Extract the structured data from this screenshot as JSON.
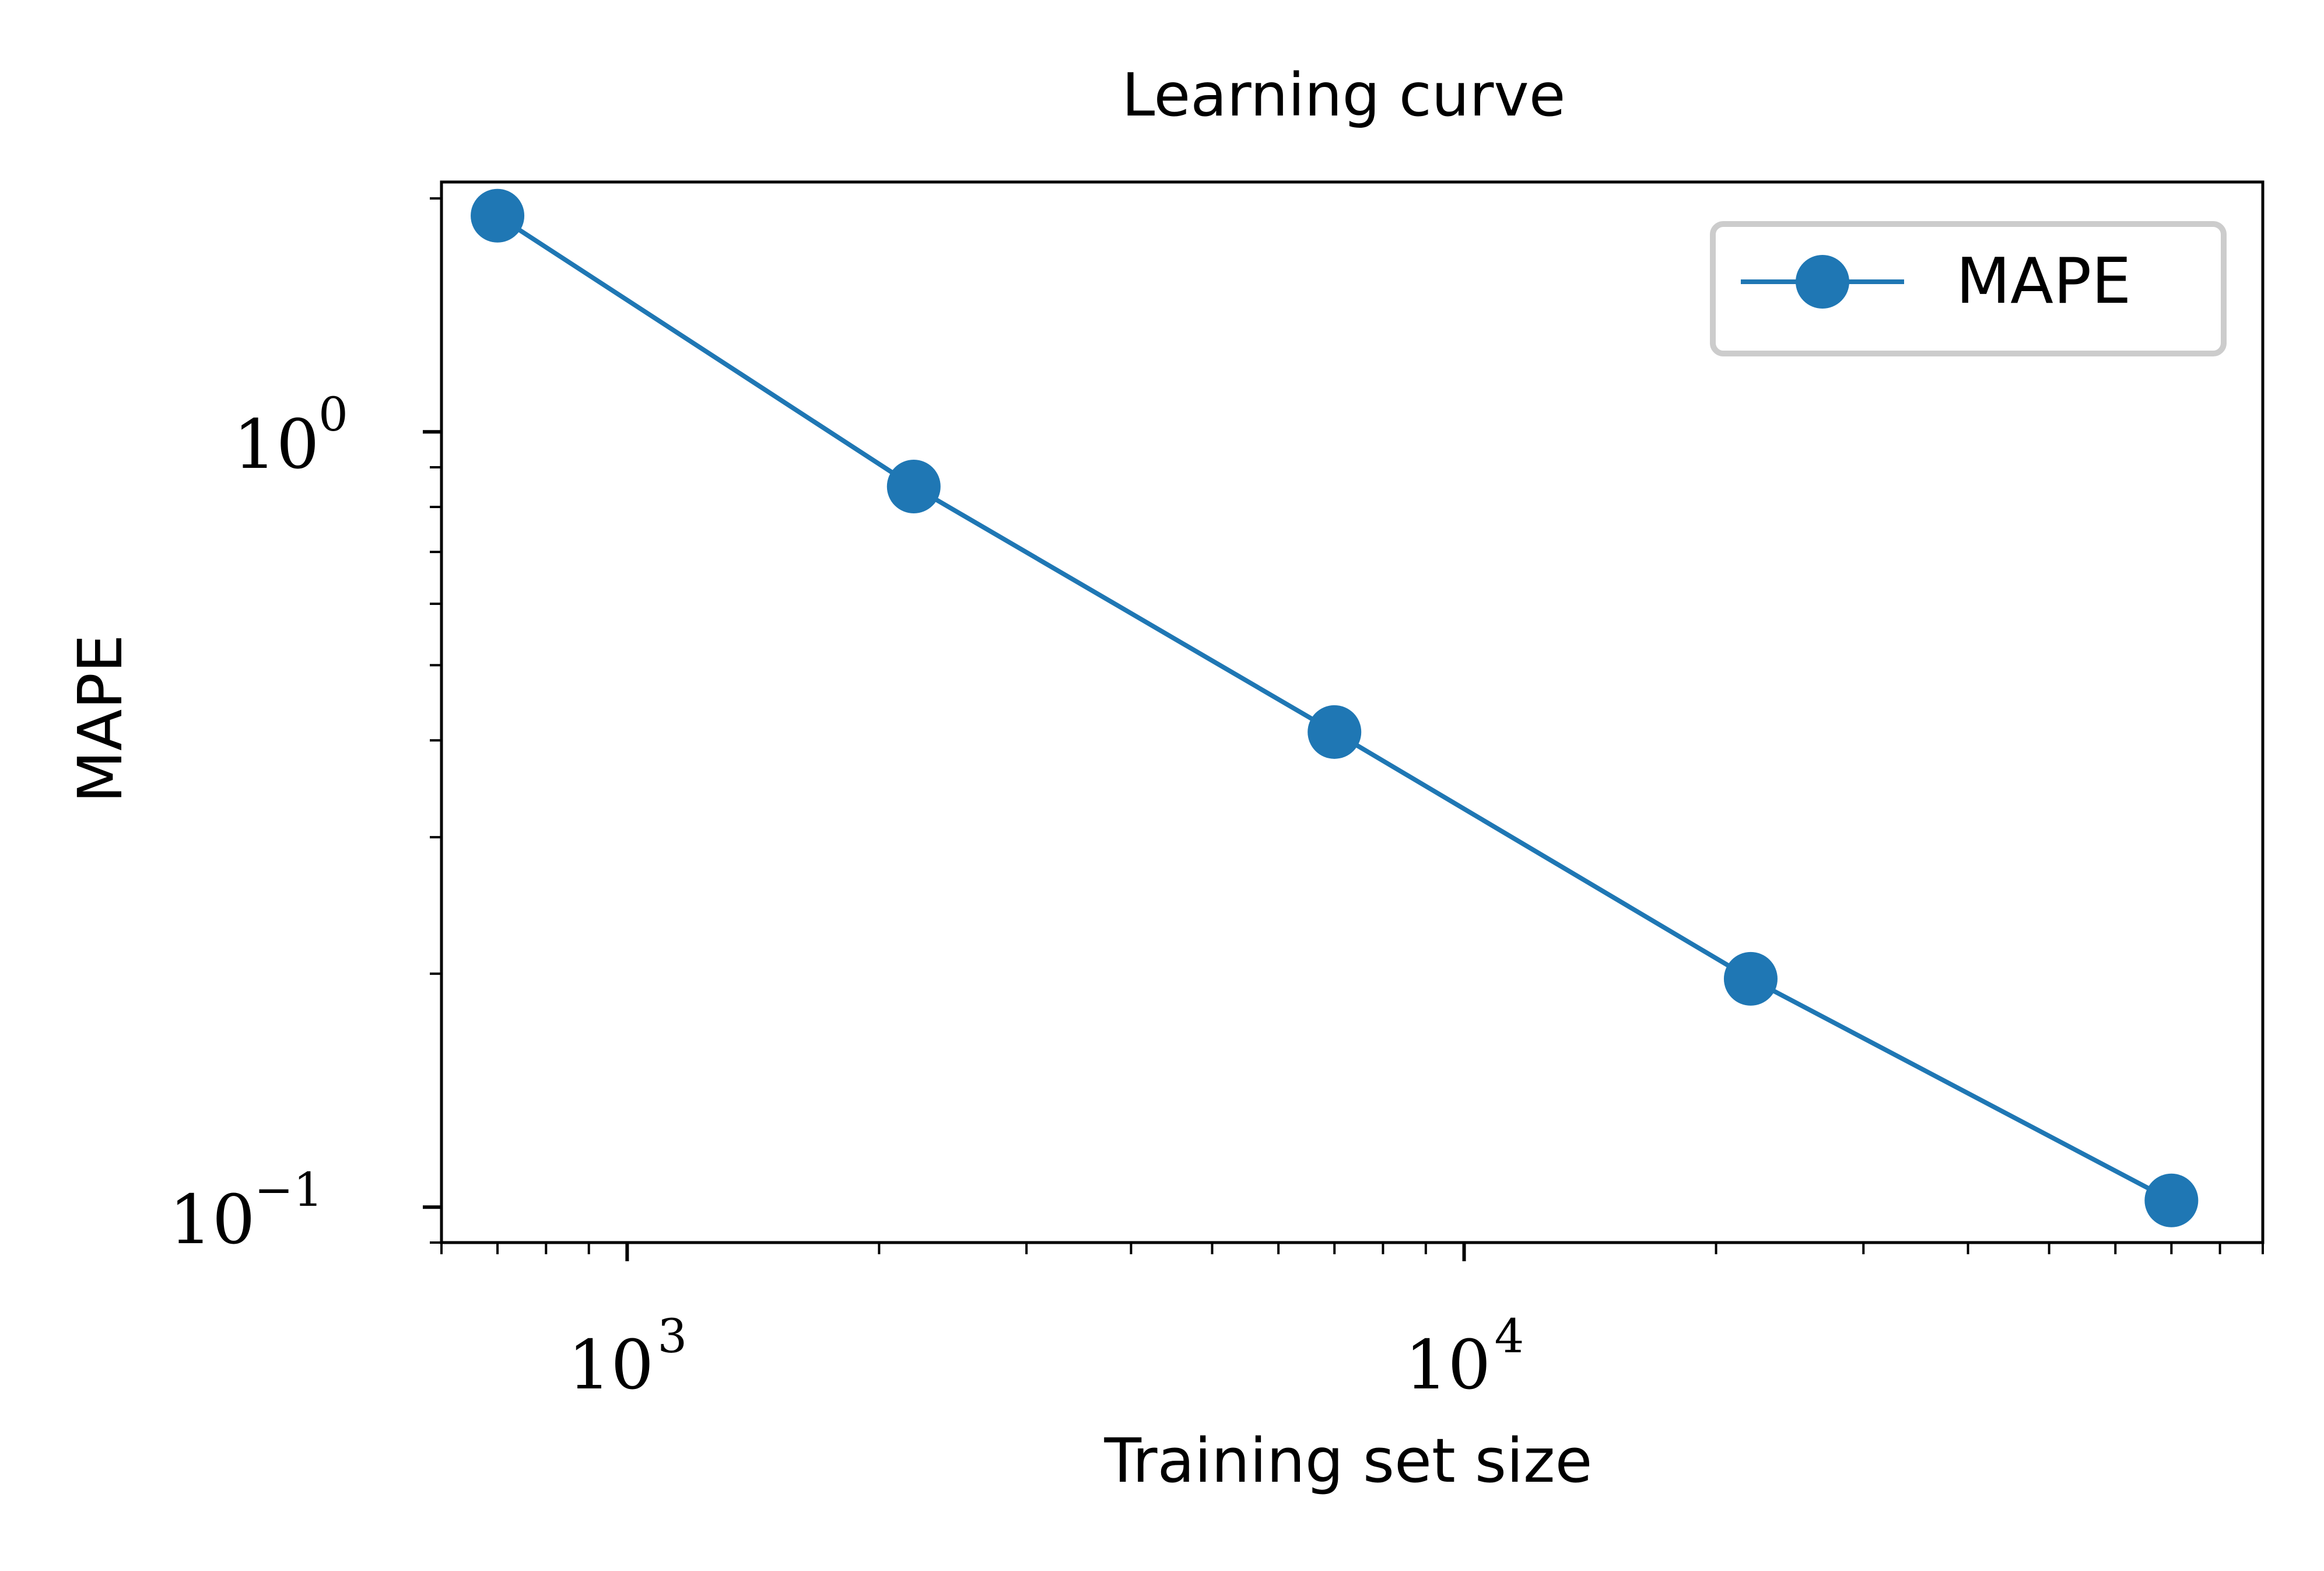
{
  "chart_data": {
    "type": "line",
    "title": "Learning curve",
    "xlabel": "Training set size",
    "ylabel": "MAPE",
    "xscale": "log",
    "yscale": "log",
    "xlim": [
      600,
      90000
    ],
    "ylim": [
      0.09,
      2.1
    ],
    "grid": false,
    "legend": {
      "position": "top-right",
      "entries": [
        "MAPE"
      ]
    },
    "x_ticks": [
      {
        "base": "10",
        "exp": "3",
        "value": 1000
      },
      {
        "base": "10",
        "exp": "4",
        "value": 10000
      }
    ],
    "y_ticks": [
      {
        "base": "10",
        "exp": "0",
        "value": 1
      },
      {
        "base": "10",
        "exp": "−1",
        "value": 0.1
      }
    ],
    "series": [
      {
        "name": "MAPE",
        "color": "#1f77b4",
        "marker": "circle",
        "x": [
          700,
          2200,
          7000,
          22000,
          70000
        ],
        "y": [
          1.9,
          0.85,
          0.41,
          0.197,
          0.102
        ]
      }
    ]
  }
}
